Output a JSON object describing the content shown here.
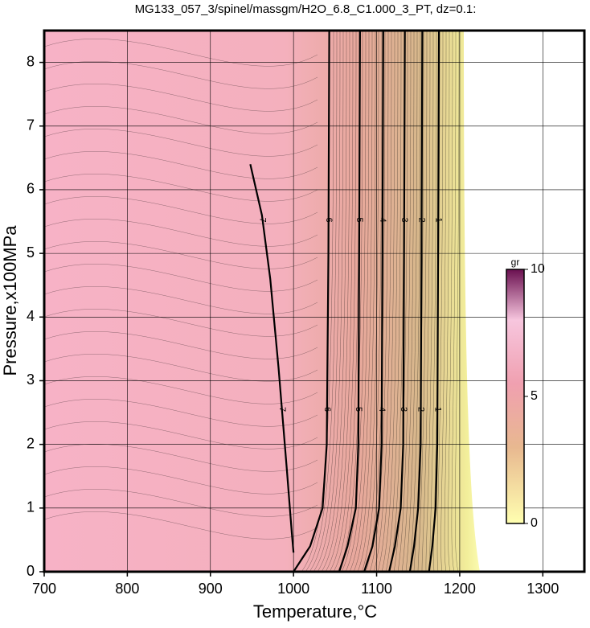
{
  "chart_data": {
    "type": "contour",
    "title": "MG133_057_3/spinel/massgm/H2O_6.8_C1.000_3_PT, dz=0.1:",
    "x_label": "Temperature,°C",
    "y_label": "Pressure,x100MPa",
    "xlim": [
      700,
      1350
    ],
    "xticks": [
      700,
      800,
      900,
      1000,
      1100,
      1200,
      1300
    ],
    "ylim": [
      0,
      8.5
    ],
    "yticks": [
      0,
      1,
      2,
      3,
      4,
      5,
      6,
      7,
      8
    ],
    "grid": true,
    "contours": [
      {
        "level": 7,
        "x": [
          948,
          962,
          972,
          982,
          992,
          998,
          1000
        ],
        "y": [
          6.4,
          5.6,
          4.6,
          3.2,
          1.6,
          0.6,
          0.3
        ]
      },
      {
        "level": 6,
        "x": [
          1043,
          1042,
          1040,
          1035,
          1020,
          1000
        ],
        "y": [
          8.5,
          5,
          2,
          1,
          0.4,
          0
        ]
      },
      {
        "level": 5,
        "x": [
          1080,
          1079,
          1078,
          1075,
          1065,
          1055
        ],
        "y": [
          8.5,
          5,
          2,
          1,
          0.4,
          0
        ]
      },
      {
        "level": 4,
        "x": [
          1108,
          1107,
          1106,
          1103,
          1095,
          1085
        ],
        "y": [
          8.5,
          5,
          2,
          1,
          0.4,
          0
        ]
      },
      {
        "level": 3,
        "x": [
          1134,
          1133,
          1132,
          1129,
          1122,
          1115
        ],
        "y": [
          8.5,
          5,
          2,
          1,
          0.4,
          0
        ]
      },
      {
        "level": 2,
        "x": [
          1155,
          1154,
          1153,
          1150,
          1145,
          1140
        ],
        "y": [
          8.5,
          5,
          2,
          1,
          0.4,
          0
        ]
      },
      {
        "level": 1,
        "x": [
          1175,
          1174,
          1173,
          1171,
          1167,
          1163
        ],
        "y": [
          8.5,
          5,
          2,
          1,
          0.4,
          0
        ]
      }
    ],
    "colorbar": {
      "label": "gr",
      "lim": [
        0,
        10
      ],
      "ticks": [
        0,
        5,
        10
      ]
    }
  }
}
